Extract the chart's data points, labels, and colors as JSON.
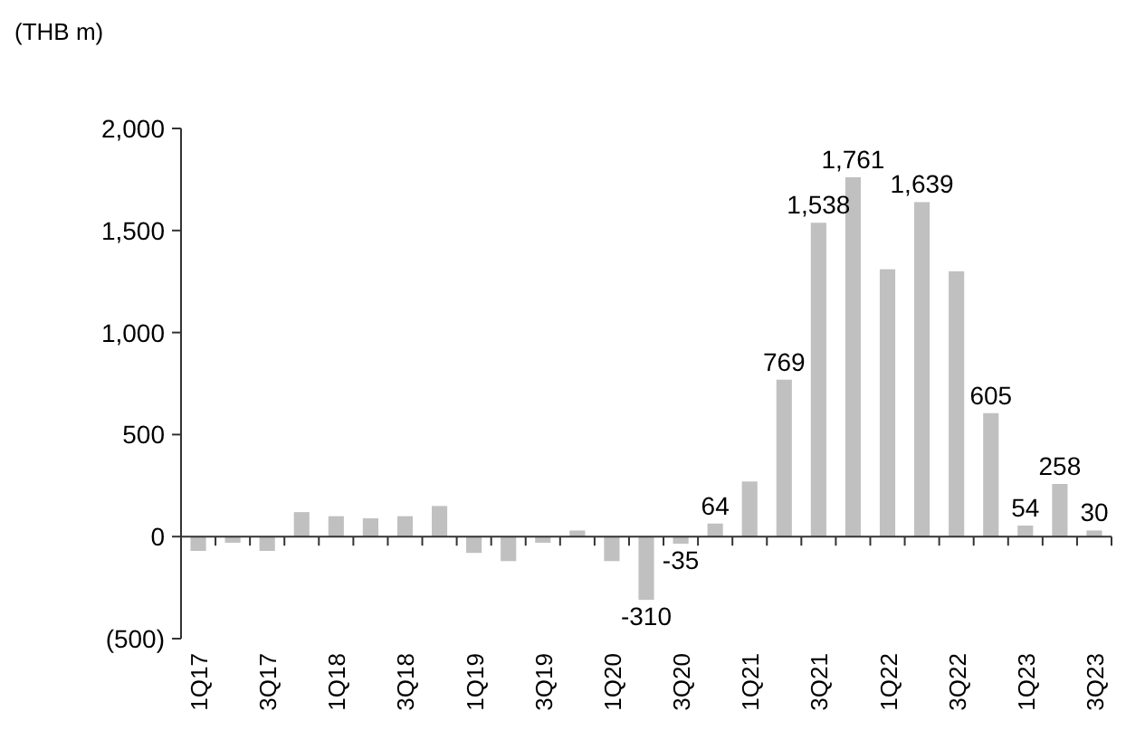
{
  "chart_data": {
    "type": "bar",
    "ylabel": "(THB m)",
    "categories": [
      "1Q17",
      null,
      "3Q17",
      null,
      "1Q18",
      null,
      "3Q18",
      null,
      "1Q19",
      null,
      "3Q19",
      null,
      "1Q20",
      null,
      "3Q20",
      null,
      "1Q21",
      null,
      "3Q21",
      null,
      "1Q22",
      null,
      "3Q22",
      null,
      "1Q23",
      null,
      "3Q23"
    ],
    "values": [
      -70,
      -30,
      -70,
      120,
      100,
      90,
      100,
      150,
      -80,
      -120,
      -30,
      30,
      -120,
      -310,
      -35,
      64,
      270,
      769,
      1538,
      1761,
      1310,
      1639,
      1300,
      605,
      54,
      258,
      30
    ],
    "value_labels": [
      null,
      null,
      null,
      null,
      null,
      null,
      null,
      null,
      null,
      null,
      null,
      null,
      null,
      "-310",
      "-35",
      "64",
      null,
      "769",
      "1,538",
      "1,761",
      null,
      "1,639",
      null,
      "605",
      "54",
      "258",
      "30"
    ],
    "color": "#c0c0c0",
    "ylim": [
      -500,
      2000
    ],
    "yticks": [
      {
        "value": -500,
        "label": "(500)"
      },
      0,
      500,
      {
        "value": 1000,
        "label": "1,000"
      },
      {
        "value": 1500,
        "label": "1,500"
      },
      {
        "value": 2000,
        "label": "2,000"
      }
    ]
  }
}
